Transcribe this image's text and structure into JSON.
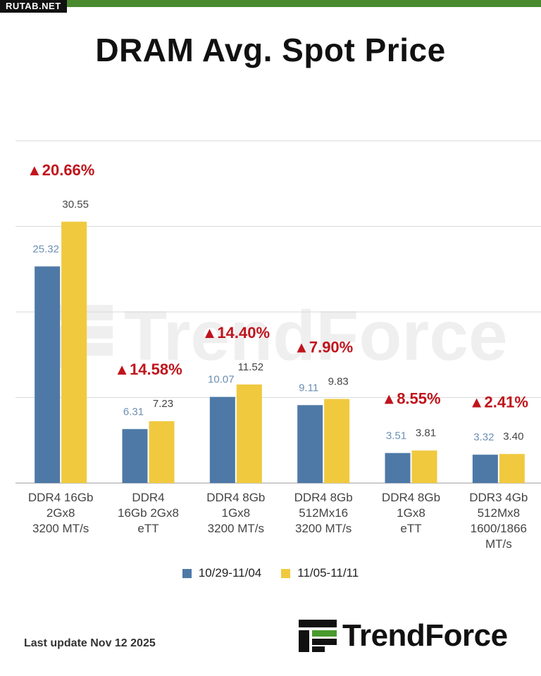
{
  "header": {
    "badge": "RUTAB.NET",
    "title": "DRAM Avg. Spot Price"
  },
  "watermark": "TrendForce",
  "footer": {
    "last_update": "Last update Nov 12  2025",
    "brand": "TrendForce"
  },
  "colors": {
    "series1": "#4e79a7",
    "series2": "#f0c93f",
    "increase": "#c0141c",
    "label1": "#6b8fb3",
    "label2": "#444444"
  },
  "chart_data": {
    "type": "bar",
    "title": "DRAM Avg. Spot Price",
    "categories": [
      [
        "DDR4 16Gb",
        "2Gx8",
        "3200 MT/s"
      ],
      [
        "DDR4",
        "16Gb 2Gx8",
        "eTT"
      ],
      [
        "DDR4 8Gb",
        "1Gx8",
        "3200 MT/s"
      ],
      [
        "DDR4 8Gb",
        "512Mx16",
        "3200 MT/s"
      ],
      [
        "DDR4 8Gb",
        "1Gx8",
        "eTT"
      ],
      [
        "DDR3 4Gb",
        "512Mx8",
        "1600/1866",
        "MT/s"
      ]
    ],
    "series": [
      {
        "name": "10/29-11/04",
        "values": [
          25.32,
          6.31,
          10.07,
          9.11,
          3.51,
          3.32
        ],
        "labels": [
          "25.32",
          "6.31",
          "10.07",
          "9.11",
          "3.51",
          "3.32"
        ]
      },
      {
        "name": "11/05-11/11",
        "values": [
          30.55,
          7.23,
          11.52,
          9.83,
          3.81,
          3.4
        ],
        "labels": [
          "30.55",
          "7.23",
          "11.52",
          "9.83",
          "3.81",
          "3.40"
        ]
      }
    ],
    "changes": [
      "▲20.66%",
      "▲14.58%",
      "▲14.40%",
      "▲7.90%",
      "▲8.55%",
      "▲2.41%"
    ],
    "ylim": [
      0,
      40
    ],
    "grid": true,
    "legend": "bottom"
  }
}
